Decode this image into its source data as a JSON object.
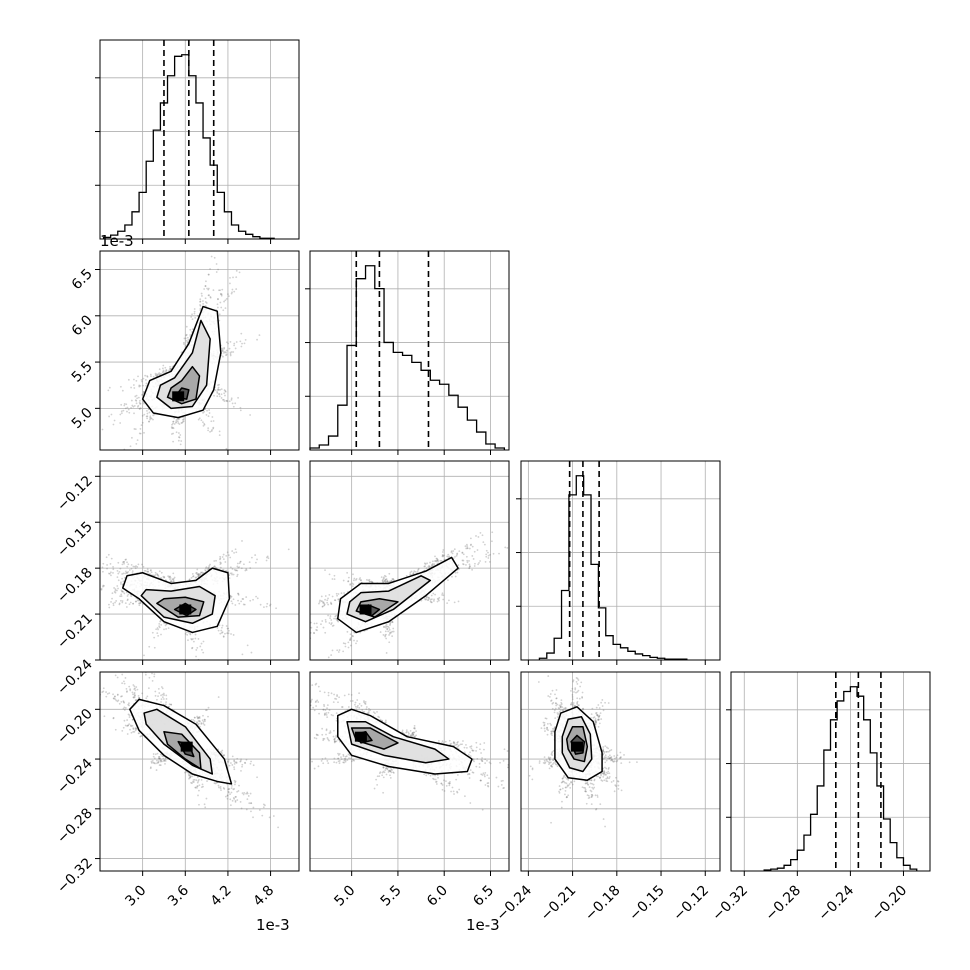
{
  "chart_data": [
    {
      "type": "histogram",
      "variable_index": 0,
      "x_scale_label": "1e-3",
      "xlim": [
        2.4,
        5.2
      ],
      "x_ticks": [
        3.0,
        3.6,
        4.2,
        4.8
      ],
      "x_tick_labels": [
        "3.0",
        "3.6",
        "4.2",
        "4.8"
      ],
      "bin_centers": [
        2.5,
        2.6,
        2.7,
        2.8,
        2.9,
        3.0,
        3.1,
        3.2,
        3.3,
        3.4,
        3.5,
        3.6,
        3.7,
        3.8,
        3.9,
        4.0,
        4.1,
        4.2,
        4.3,
        4.4,
        4.5,
        4.6,
        4.7,
        4.8
      ],
      "counts": [
        2,
        5,
        10,
        18,
        35,
        60,
        100,
        140,
        175,
        210,
        235,
        237,
        210,
        175,
        130,
        95,
        60,
        35,
        18,
        10,
        6,
        3,
        1,
        1
      ],
      "quantiles": [
        3.3,
        3.65,
        4.0
      ],
      "grid": true
    },
    {
      "type": "histogram",
      "variable_index": 1,
      "x_scale_label": "1e-3",
      "xlim": [
        4.55,
        6.7
      ],
      "x_ticks": [
        5.0,
        5.5,
        6.0,
        6.5
      ],
      "x_tick_labels": [
        "5.0",
        "5.5",
        "6.0",
        "6.5"
      ],
      "bin_centers": [
        4.6,
        4.7,
        4.8,
        4.9,
        5.0,
        5.1,
        5.2,
        5.3,
        5.4,
        5.5,
        5.6,
        5.7,
        5.8,
        5.9,
        6.0,
        6.1,
        6.2,
        6.3,
        6.4,
        6.5,
        6.6
      ],
      "counts": [
        2,
        5,
        14,
        45,
        105,
        172,
        185,
        162,
        108,
        98,
        95,
        88,
        80,
        70,
        66,
        55,
        43,
        30,
        18,
        6,
        2
      ],
      "quantiles": [
        5.05,
        5.3,
        5.83
      ],
      "grid": true
    },
    {
      "type": "histogram",
      "variable_index": 2,
      "xlim": [
        -0.245,
        -0.11
      ],
      "x_ticks": [
        -0.24,
        -0.21,
        -0.18,
        -0.15,
        -0.12
      ],
      "x_tick_labels": [
        "−0.24",
        "−0.21",
        "−0.18",
        "−0.15",
        "−0.12"
      ],
      "bin_centers": [
        -0.23,
        -0.225,
        -0.22,
        -0.215,
        -0.21,
        -0.205,
        -0.2,
        -0.195,
        -0.19,
        -0.185,
        -0.18,
        -0.175,
        -0.17,
        -0.165,
        -0.16,
        -0.155,
        -0.15,
        -0.145,
        -0.14,
        -0.135
      ],
      "counts": [
        2,
        8,
        25,
        80,
        190,
        212,
        190,
        110,
        60,
        28,
        18,
        14,
        10,
        7,
        5,
        3,
        2,
        1,
        1,
        1
      ],
      "quantiles": [
        -0.212,
        -0.203,
        -0.192
      ],
      "grid": true
    },
    {
      "type": "histogram",
      "variable_index": 3,
      "xlim": [
        -0.33,
        -0.18
      ],
      "x_ticks": [
        -0.32,
        -0.28,
        -0.24,
        -0.2
      ],
      "x_tick_labels": [
        "−0.32",
        "−0.28",
        "−0.24",
        "−0.20"
      ],
      "bin_centers": [
        -0.3025,
        -0.2975,
        -0.2925,
        -0.2875,
        -0.2825,
        -0.2775,
        -0.2725,
        -0.2675,
        -0.2625,
        -0.2575,
        -0.2525,
        -0.2475,
        -0.2425,
        -0.2375,
        -0.2325,
        -0.2275,
        -0.2225,
        -0.2175,
        -0.2125,
        -0.2075,
        -0.2025,
        -0.1975,
        -0.1925
      ],
      "counts": [
        1,
        2,
        3,
        6,
        12,
        22,
        38,
        60,
        90,
        128,
        160,
        180,
        190,
        195,
        185,
        160,
        125,
        90,
        55,
        30,
        14,
        6,
        2
      ],
      "quantiles": [
        -0.251,
        -0.234,
        -0.217
      ],
      "grid": true
    },
    {
      "type": "density2d",
      "x_variable": 0,
      "y_variable": 1,
      "xlim": [
        2.4,
        5.2
      ],
      "ylim": [
        4.55,
        6.7
      ],
      "y_scale_label": "1e-3",
      "y_ticks": [
        5.0,
        5.5,
        6.0,
        6.5
      ],
      "y_tick_labels": [
        "5.0",
        "5.5",
        "6.0",
        "6.5"
      ],
      "peak": [
        3.5,
        5.13
      ],
      "contours": [
        [
          [
            3.0,
            5.1
          ],
          [
            3.15,
            4.95
          ],
          [
            3.5,
            4.9
          ],
          [
            3.85,
            4.98
          ],
          [
            4.0,
            5.2
          ],
          [
            4.1,
            5.6
          ],
          [
            4.05,
            6.05
          ],
          [
            3.85,
            6.1
          ],
          [
            3.65,
            5.7
          ],
          [
            3.4,
            5.4
          ],
          [
            3.1,
            5.3
          ]
        ],
        [
          [
            3.2,
            5.12
          ],
          [
            3.4,
            5.0
          ],
          [
            3.7,
            5.02
          ],
          [
            3.9,
            5.25
          ],
          [
            3.95,
            5.75
          ],
          [
            3.82,
            5.95
          ],
          [
            3.7,
            5.6
          ],
          [
            3.45,
            5.33
          ],
          [
            3.25,
            5.25
          ]
        ],
        [
          [
            3.35,
            5.12
          ],
          [
            3.55,
            5.05
          ],
          [
            3.75,
            5.1
          ],
          [
            3.8,
            5.35
          ],
          [
            3.7,
            5.45
          ],
          [
            3.55,
            5.3
          ],
          [
            3.4,
            5.22
          ]
        ],
        [
          [
            3.45,
            5.12
          ],
          [
            3.62,
            5.1
          ],
          [
            3.65,
            5.2
          ],
          [
            3.55,
            5.22
          ]
        ]
      ],
      "grid": true
    },
    {
      "type": "density2d",
      "x_variable": 0,
      "y_variable": 2,
      "xlim": [
        2.4,
        5.2
      ],
      "ylim": [
        -0.24,
        -0.11
      ],
      "y_ticks": [
        -0.24,
        -0.21,
        -0.18,
        -0.15,
        -0.12
      ],
      "y_tick_labels": [
        "−0.24",
        "−0.21",
        "−0.18",
        "−0.15",
        "−0.12"
      ],
      "peak": [
        3.6,
        -0.207
      ],
      "contours": [
        [
          [
            2.72,
            -0.193
          ],
          [
            2.95,
            -0.2
          ],
          [
            3.3,
            -0.215
          ],
          [
            3.7,
            -0.222
          ],
          [
            4.05,
            -0.218
          ],
          [
            4.22,
            -0.2
          ],
          [
            4.2,
            -0.183
          ],
          [
            3.98,
            -0.18
          ],
          [
            3.75,
            -0.188
          ],
          [
            3.4,
            -0.19
          ],
          [
            3.0,
            -0.183
          ],
          [
            2.78,
            -0.185
          ]
        ],
        [
          [
            2.98,
            -0.198
          ],
          [
            3.3,
            -0.212
          ],
          [
            3.7,
            -0.216
          ],
          [
            3.98,
            -0.21
          ],
          [
            4.02,
            -0.198
          ],
          [
            3.8,
            -0.192
          ],
          [
            3.4,
            -0.195
          ],
          [
            3.05,
            -0.194
          ]
        ],
        [
          [
            3.2,
            -0.203
          ],
          [
            3.5,
            -0.212
          ],
          [
            3.8,
            -0.211
          ],
          [
            3.86,
            -0.202
          ],
          [
            3.6,
            -0.199
          ],
          [
            3.3,
            -0.2
          ]
        ],
        [
          [
            3.45,
            -0.207
          ],
          [
            3.62,
            -0.211
          ],
          [
            3.75,
            -0.207
          ],
          [
            3.6,
            -0.203
          ]
        ]
      ],
      "grid": true
    },
    {
      "type": "density2d",
      "x_variable": 1,
      "y_variable": 2,
      "xlim": [
        4.55,
        6.7
      ],
      "ylim": [
        -0.24,
        -0.11
      ],
      "peak": [
        5.15,
        -0.207
      ],
      "contours": [
        [
          [
            4.85,
            -0.213
          ],
          [
            5.05,
            -0.222
          ],
          [
            5.4,
            -0.215
          ],
          [
            5.8,
            -0.198
          ],
          [
            6.15,
            -0.18
          ],
          [
            6.08,
            -0.173
          ],
          [
            5.8,
            -0.182
          ],
          [
            5.4,
            -0.19
          ],
          [
            5.1,
            -0.19
          ],
          [
            4.88,
            -0.2
          ]
        ],
        [
          [
            4.95,
            -0.21
          ],
          [
            5.15,
            -0.215
          ],
          [
            5.45,
            -0.207
          ],
          [
            5.85,
            -0.188
          ],
          [
            5.75,
            -0.185
          ],
          [
            5.4,
            -0.195
          ],
          [
            5.1,
            -0.196
          ],
          [
            4.98,
            -0.202
          ]
        ],
        [
          [
            5.05,
            -0.208
          ],
          [
            5.25,
            -0.212
          ],
          [
            5.5,
            -0.202
          ],
          [
            5.3,
            -0.2
          ],
          [
            5.1,
            -0.202
          ]
        ],
        [
          [
            5.1,
            -0.209
          ],
          [
            5.22,
            -0.211
          ],
          [
            5.3,
            -0.207
          ],
          [
            5.18,
            -0.204
          ]
        ]
      ],
      "grid": true
    },
    {
      "type": "density2d",
      "x_variable": 0,
      "y_variable": 3,
      "xlim": [
        2.4,
        5.2
      ],
      "ylim": [
        -0.33,
        -0.17
      ],
      "x_scale_label": "1e-3",
      "x_ticks": [
        3.0,
        3.6,
        4.2,
        4.8
      ],
      "x_tick_labels": [
        "3.0",
        "3.6",
        "4.2",
        "4.8"
      ],
      "y_ticks": [
        -0.32,
        -0.28,
        -0.24,
        -0.2
      ],
      "y_tick_labels": [
        "−0.32",
        "−0.28",
        "−0.24",
        "−0.20"
      ],
      "peak": [
        3.62,
        -0.23
      ],
      "contours": [
        [
          [
            2.82,
            -0.2
          ],
          [
            2.95,
            -0.192
          ],
          [
            3.3,
            -0.197
          ],
          [
            3.75,
            -0.212
          ],
          [
            4.15,
            -0.24
          ],
          [
            4.25,
            -0.26
          ],
          [
            4.05,
            -0.258
          ],
          [
            3.7,
            -0.252
          ],
          [
            3.3,
            -0.237
          ],
          [
            2.95,
            -0.217
          ]
        ],
        [
          [
            3.02,
            -0.203
          ],
          [
            3.2,
            -0.2
          ],
          [
            3.6,
            -0.214
          ],
          [
            3.95,
            -0.24
          ],
          [
            3.98,
            -0.252
          ],
          [
            3.7,
            -0.245
          ],
          [
            3.3,
            -0.228
          ],
          [
            3.05,
            -0.212
          ]
        ],
        [
          [
            3.3,
            -0.218
          ],
          [
            3.55,
            -0.22
          ],
          [
            3.8,
            -0.235
          ],
          [
            3.82,
            -0.248
          ],
          [
            3.6,
            -0.24
          ],
          [
            3.35,
            -0.228
          ]
        ],
        [
          [
            3.5,
            -0.226
          ],
          [
            3.65,
            -0.228
          ],
          [
            3.72,
            -0.238
          ],
          [
            3.6,
            -0.236
          ]
        ]
      ],
      "grid": true
    },
    {
      "type": "density2d",
      "x_variable": 1,
      "y_variable": 3,
      "xlim": [
        4.55,
        6.7
      ],
      "ylim": [
        -0.33,
        -0.17
      ],
      "x_scale_label": "1e-3",
      "x_ticks": [
        5.0,
        5.5,
        6.0,
        6.5
      ],
      "x_tick_labels": [
        "5.0",
        "5.5",
        "6.0",
        "6.5"
      ],
      "peak": [
        5.1,
        -0.222
      ],
      "contours": [
        [
          [
            4.85,
            -0.205
          ],
          [
            5.0,
            -0.2
          ],
          [
            5.2,
            -0.205
          ],
          [
            5.6,
            -0.222
          ],
          [
            6.1,
            -0.23
          ],
          [
            6.3,
            -0.24
          ],
          [
            6.25,
            -0.25
          ],
          [
            5.9,
            -0.252
          ],
          [
            5.4,
            -0.246
          ],
          [
            5.0,
            -0.237
          ],
          [
            4.85,
            -0.222
          ]
        ],
        [
          [
            4.95,
            -0.21
          ],
          [
            5.15,
            -0.21
          ],
          [
            5.45,
            -0.222
          ],
          [
            5.9,
            -0.232
          ],
          [
            6.05,
            -0.24
          ],
          [
            5.8,
            -0.243
          ],
          [
            5.35,
            -0.237
          ],
          [
            5.0,
            -0.228
          ]
        ],
        [
          [
            5.0,
            -0.215
          ],
          [
            5.2,
            -0.215
          ],
          [
            5.5,
            -0.227
          ],
          [
            5.35,
            -0.232
          ],
          [
            5.05,
            -0.225
          ]
        ],
        [
          [
            5.05,
            -0.22
          ],
          [
            5.15,
            -0.218
          ],
          [
            5.22,
            -0.225
          ],
          [
            5.1,
            -0.227
          ]
        ]
      ],
      "grid": true
    },
    {
      "type": "density2d",
      "x_variable": 2,
      "y_variable": 3,
      "xlim": [
        -0.245,
        -0.11
      ],
      "ylim": [
        -0.33,
        -0.17
      ],
      "x_ticks": [
        -0.24,
        -0.21,
        -0.18,
        -0.15,
        -0.12
      ],
      "x_tick_labels": [
        "−0.24",
        "−0.21",
        "−0.18",
        "−0.15",
        "−0.12"
      ],
      "peak": [
        -0.207,
        -0.23
      ],
      "contours": [
        [
          [
            -0.222,
            -0.218
          ],
          [
            -0.218,
            -0.203
          ],
          [
            -0.207,
            -0.198
          ],
          [
            -0.196,
            -0.21
          ],
          [
            -0.19,
            -0.235
          ],
          [
            -0.19,
            -0.25
          ],
          [
            -0.2,
            -0.257
          ],
          [
            -0.213,
            -0.255
          ],
          [
            -0.222,
            -0.24
          ]
        ],
        [
          [
            -0.217,
            -0.222
          ],
          [
            -0.213,
            -0.208
          ],
          [
            -0.204,
            -0.206
          ],
          [
            -0.198,
            -0.22
          ],
          [
            -0.197,
            -0.24
          ],
          [
            -0.203,
            -0.25
          ],
          [
            -0.212,
            -0.247
          ],
          [
            -0.217,
            -0.235
          ]
        ],
        [
          [
            -0.214,
            -0.224
          ],
          [
            -0.21,
            -0.214
          ],
          [
            -0.203,
            -0.214
          ],
          [
            -0.2,
            -0.23
          ],
          [
            -0.202,
            -0.242
          ],
          [
            -0.209,
            -0.24
          ],
          [
            -0.213,
            -0.232
          ]
        ],
        [
          [
            -0.211,
            -0.226
          ],
          [
            -0.207,
            -0.221
          ],
          [
            -0.202,
            -0.226
          ],
          [
            -0.203,
            -0.235
          ],
          [
            -0.208,
            -0.236
          ]
        ]
      ],
      "grid": true
    }
  ]
}
